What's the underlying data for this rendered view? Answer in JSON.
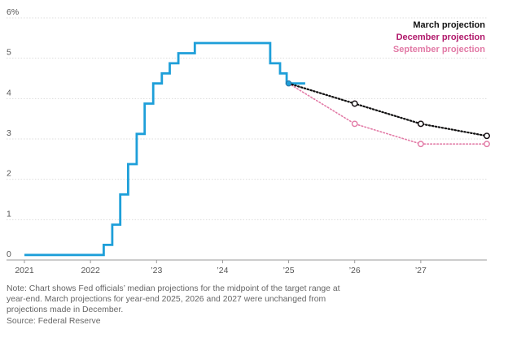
{
  "chart_data": {
    "type": "line",
    "title": "",
    "xlabel": "",
    "ylabel": "",
    "x_axis": {
      "range": [
        2021,
        2028
      ],
      "ticks": [
        {
          "value": 2021,
          "label": "2021"
        },
        {
          "value": 2022,
          "label": "2022"
        },
        {
          "value": 2023,
          "label": "’23"
        },
        {
          "value": 2024,
          "label": "’24"
        },
        {
          "value": 2025,
          "label": "’25"
        },
        {
          "value": 2026,
          "label": "’26"
        },
        {
          "value": 2027,
          "label": "’27"
        }
      ]
    },
    "y_axis": {
      "range": [
        0,
        6
      ],
      "ticks": [
        {
          "value": 0,
          "label": "0"
        },
        {
          "value": 1,
          "label": "1"
        },
        {
          "value": 2,
          "label": "2"
        },
        {
          "value": 3,
          "label": "3"
        },
        {
          "value": 4,
          "label": "4"
        },
        {
          "value": 5,
          "label": "5"
        },
        {
          "value": 6,
          "label": "6%"
        }
      ]
    },
    "grid": true,
    "legend_position": "top-right",
    "actual_series": {
      "color": "#1e9fd9",
      "points": [
        [
          2021.0,
          0.125
        ],
        [
          2022.2,
          0.125
        ],
        [
          2022.2,
          0.375
        ],
        [
          2022.33,
          0.375
        ],
        [
          2022.33,
          0.875
        ],
        [
          2022.45,
          0.875
        ],
        [
          2022.45,
          1.625
        ],
        [
          2022.57,
          1.625
        ],
        [
          2022.57,
          2.375
        ],
        [
          2022.7,
          2.375
        ],
        [
          2022.7,
          3.125
        ],
        [
          2022.82,
          3.125
        ],
        [
          2022.82,
          3.875
        ],
        [
          2022.95,
          3.875
        ],
        [
          2022.95,
          4.375
        ],
        [
          2023.08,
          4.375
        ],
        [
          2023.08,
          4.625
        ],
        [
          2023.2,
          4.625
        ],
        [
          2023.2,
          4.875
        ],
        [
          2023.33,
          4.875
        ],
        [
          2023.33,
          5.125
        ],
        [
          2023.58,
          5.125
        ],
        [
          2023.58,
          5.375
        ],
        [
          2024.72,
          5.375
        ],
        [
          2024.72,
          4.875
        ],
        [
          2024.87,
          4.875
        ],
        [
          2024.87,
          4.625
        ],
        [
          2024.97,
          4.625
        ],
        [
          2024.97,
          4.375
        ],
        [
          2025.25,
          4.375
        ]
      ]
    },
    "series": [
      {
        "name": "March projection",
        "color": "#111111",
        "points": [
          [
            2025.0,
            4.375
          ],
          [
            2026.0,
            3.875
          ],
          [
            2027.0,
            3.375
          ],
          [
            2028.0,
            3.075
          ]
        ]
      },
      {
        "name": "December projection",
        "color": "#b0176a",
        "points": [
          [
            2025.0,
            4.375
          ],
          [
            2026.0,
            3.875
          ],
          [
            2027.0,
            3.375
          ],
          [
            2028.0,
            3.075
          ]
        ]
      },
      {
        "name": "September projection",
        "color": "#e27aa6",
        "points": [
          [
            2025.0,
            4.375
          ],
          [
            2026.0,
            3.375
          ],
          [
            2027.0,
            2.875
          ],
          [
            2028.0,
            2.875
          ]
        ]
      }
    ]
  },
  "notes": [
    "Note: Chart shows Fed officials’ median projections for the midpoint of the target range at",
    "year-end. March projections for year-end 2025, 2026 and 2027 were unchanged from",
    "projections made in December.",
    "Source: Federal Reserve"
  ]
}
